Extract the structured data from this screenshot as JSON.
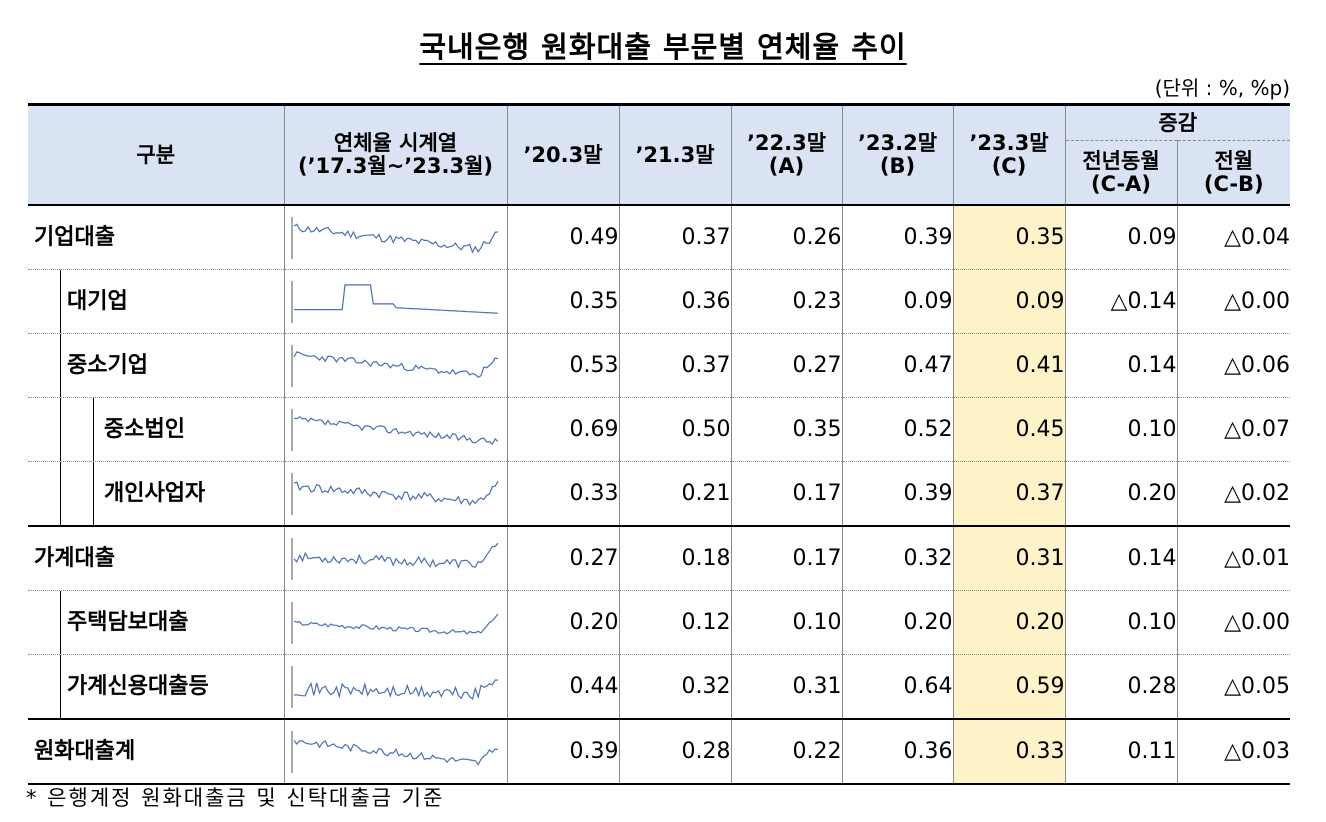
{
  "title": "국내은행 원화대출 부문별 연체율 추이",
  "unit": "(단위 : %, %p)",
  "header": {
    "category": "구분",
    "sparkline": "연체율 시계열",
    "sparkline_sub": "(’17.3월~’23.3월)",
    "c1": "’20.3말",
    "c2": "’21.3말",
    "c3": "’22.3말",
    "c3_sub": "(A)",
    "c4": "’23.2말",
    "c4_sub": "(B)",
    "c5": "’23.3말",
    "c5_sub": "(C)",
    "change": "증감",
    "yoy": "전년동월",
    "yoy_sub": "(C-A)",
    "mom": "전월",
    "mom_sub": "(C-B)"
  },
  "rows": [
    {
      "label": "기업대출",
      "v": [
        "0.49",
        "0.37",
        "0.26",
        "0.39",
        "0.35",
        "0.09",
        "△0.04"
      ]
    },
    {
      "label": "대기업",
      "v": [
        "0.35",
        "0.36",
        "0.23",
        "0.09",
        "0.09",
        "△0.14",
        "△0.00"
      ]
    },
    {
      "label": "중소기업",
      "v": [
        "0.53",
        "0.37",
        "0.27",
        "0.47",
        "0.41",
        "0.14",
        "△0.06"
      ]
    },
    {
      "label": "중소법인",
      "v": [
        "0.69",
        "0.50",
        "0.35",
        "0.52",
        "0.45",
        "0.10",
        "△0.07"
      ]
    },
    {
      "label": "개인사업자",
      "v": [
        "0.33",
        "0.21",
        "0.17",
        "0.39",
        "0.37",
        "0.20",
        "△0.02"
      ]
    },
    {
      "label": "가계대출",
      "v": [
        "0.27",
        "0.18",
        "0.17",
        "0.32",
        "0.31",
        "0.14",
        "△0.01"
      ]
    },
    {
      "label": "주택담보대출",
      "v": [
        "0.20",
        "0.12",
        "0.10",
        "0.20",
        "0.20",
        "0.10",
        "△0.00"
      ]
    },
    {
      "label": "가계신용대출등",
      "v": [
        "0.44",
        "0.32",
        "0.31",
        "0.64",
        "0.59",
        "0.28",
        "△0.05"
      ]
    },
    {
      "label": "원화대출계",
      "v": [
        "0.39",
        "0.28",
        "0.22",
        "0.36",
        "0.33",
        "0.11",
        "△0.03"
      ]
    }
  ],
  "note": "* 은행계정 원화대출금 및 신탁대출금 기준",
  "colors": {
    "header_bg": "#dae3f3",
    "highlight": "#fdf2c8",
    "sparkline": "#4a6fb5"
  }
}
